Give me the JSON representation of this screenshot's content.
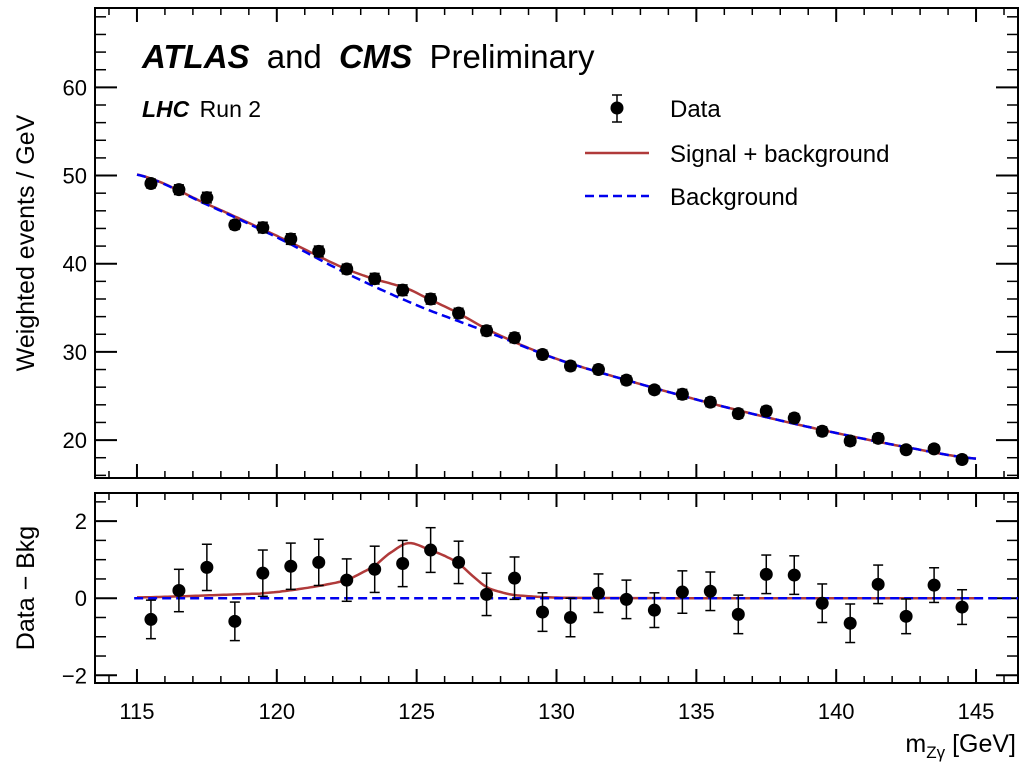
{
  "chart_data": {
    "type": "scatter",
    "title": {
      "experiment1": "ATLAS",
      "joiner": "and",
      "experiment2": "CMS",
      "status": "Preliminary"
    },
    "subtitle": {
      "machine": "LHC",
      "run": "Run 2"
    },
    "xlabel": "m",
    "xlabel_sub": "Zγ",
    "xlabel_unit": " [GeV]",
    "xlim": [
      113.5,
      146.5
    ],
    "xticks": [
      115,
      120,
      125,
      130,
      135,
      140,
      145
    ],
    "xtick_labels": [
      "115",
      "120",
      "125",
      "130",
      "135",
      "140",
      "145"
    ],
    "legend_position": "top-right",
    "colors": {
      "data": "#000000",
      "signal": "#b03a3a",
      "background": "#0000ee"
    },
    "panels": [
      {
        "name": "main",
        "ylabel": "Weighted events / GeV",
        "ylim": [
          15.7,
          69
        ],
        "yticks": [
          20,
          30,
          40,
          50,
          60
        ],
        "ytick_labels": [
          "20",
          "30",
          "40",
          "50",
          "60"
        ],
        "legend": [
          {
            "label": "Data",
            "style": "marker"
          },
          {
            "label": "Signal + background",
            "style": "solid"
          },
          {
            "label": "Background",
            "style": "dashed"
          }
        ],
        "data": {
          "x": [
            115.5,
            116.5,
            117.5,
            118.5,
            119.5,
            120.5,
            121.5,
            122.5,
            123.5,
            124.5,
            125.5,
            126.5,
            127.5,
            128.5,
            129.5,
            130.5,
            131.5,
            132.5,
            133.5,
            134.5,
            135.5,
            136.5,
            137.5,
            138.5,
            139.5,
            140.5,
            141.5,
            142.5,
            143.5,
            144.5
          ],
          "y": [
            49.1,
            48.4,
            47.5,
            44.4,
            44.1,
            42.8,
            41.4,
            39.4,
            38.3,
            37.0,
            36.0,
            34.4,
            32.4,
            31.6,
            29.7,
            28.4,
            28.0,
            26.8,
            25.7,
            25.2,
            24.3,
            23.0,
            23.3,
            22.5,
            21.0,
            19.9,
            20.2,
            18.9,
            19.0,
            17.8
          ]
        },
        "background": {
          "x": [
            115,
            117.5,
            120,
            122.5,
            125,
            127.5,
            130,
            132.5,
            135,
            137.5,
            140,
            142.5,
            145
          ],
          "y": [
            50.1,
            46.7,
            43.0,
            38.9,
            35.3,
            32.3,
            29.2,
            26.8,
            24.6,
            22.6,
            20.8,
            19.2,
            17.9
          ]
        }
      },
      {
        "name": "residual",
        "ylabel": "Data − Bkg",
        "ylim": [
          -2.2,
          2.73
        ],
        "yticks": [
          -2,
          0,
          2
        ],
        "ytick_labels": [
          "−2",
          "0",
          "2"
        ],
        "data": {
          "x": [
            115.5,
            116.5,
            117.5,
            118.5,
            119.5,
            120.5,
            121.5,
            122.5,
            123.5,
            124.5,
            125.5,
            126.5,
            127.5,
            128.5,
            129.5,
            130.5,
            131.5,
            132.5,
            133.5,
            134.5,
            135.5,
            136.5,
            137.5,
            138.5,
            139.5,
            140.5,
            141.5,
            142.5,
            143.5,
            144.5
          ],
          "y": [
            -0.55,
            0.2,
            0.8,
            -0.6,
            0.65,
            0.83,
            0.93,
            0.47,
            0.75,
            0.9,
            1.25,
            0.93,
            0.1,
            0.52,
            -0.36,
            -0.5,
            0.13,
            -0.03,
            -0.31,
            0.16,
            0.18,
            -0.42,
            0.62,
            0.6,
            -0.13,
            -0.65,
            0.36,
            -0.47,
            0.34,
            -0.23
          ],
          "yerr": [
            0.5,
            0.55,
            0.6,
            0.5,
            0.6,
            0.6,
            0.6,
            0.55,
            0.6,
            0.6,
            0.58,
            0.55,
            0.55,
            0.55,
            0.5,
            0.5,
            0.5,
            0.5,
            0.45,
            0.55,
            0.5,
            0.5,
            0.5,
            0.5,
            0.5,
            0.5,
            0.5,
            0.45,
            0.45,
            0.45
          ]
        },
        "signal": {
          "x": [
            115,
            117,
            119,
            119.5,
            121,
            122.5,
            123.5,
            124,
            124.7,
            125.5,
            126,
            126.5,
            127,
            127.5,
            128,
            128.5,
            129.5,
            130.5,
            135,
            145
          ],
          "y": [
            0.02,
            0.06,
            0.11,
            0.13,
            0.26,
            0.47,
            0.83,
            1.15,
            1.43,
            1.25,
            1.1,
            0.9,
            0.58,
            0.29,
            0.16,
            0.08,
            0.03,
            0.01,
            0,
            0
          ]
        }
      }
    ]
  }
}
